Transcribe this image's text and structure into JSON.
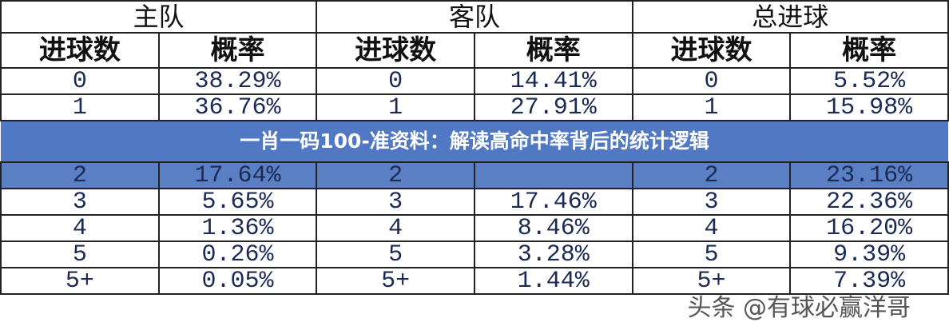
{
  "header_groups": [
    "主队",
    "客队",
    "总进球"
  ],
  "sub_headers": [
    "进球数",
    "概率",
    "进球数",
    "概率",
    "进球数",
    "概率"
  ],
  "rows": [
    [
      "0",
      "38.29%",
      "0",
      "14.41%",
      "0",
      "5.52%"
    ],
    [
      "1",
      "36.76%",
      "1",
      "27.91%",
      "1",
      "15.98%"
    ],
    [
      "2",
      "17.64%",
      "2",
      "",
      "2",
      "23.16%"
    ],
    [
      "3",
      "5.65%",
      "3",
      "17.46%",
      "3",
      "22.36%"
    ],
    [
      "4",
      "1.36%",
      "4",
      "8.46%",
      "4",
      "16.20%"
    ],
    [
      "5",
      "0.26%",
      "5",
      "3.28%",
      "5",
      "9.39%"
    ],
    [
      "5+",
      "0.05%",
      "5+",
      "1.44%",
      "5+",
      "7.39%"
    ]
  ],
  "highlight_row_color": "#5a7fc2",
  "banner_title": "一肖一码100-准资料：解读高命中率背后的统计逻辑",
  "watermark": "头条 @有球必赢洋哥"
}
